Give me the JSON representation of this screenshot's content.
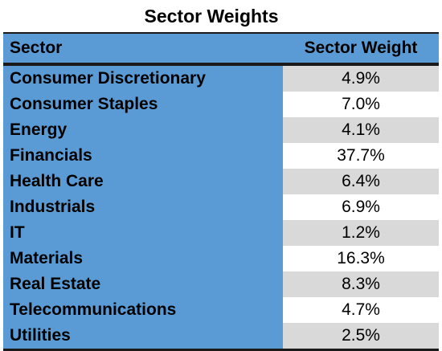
{
  "title": "Sector Weights",
  "columns": [
    "Sector",
    "Sector Weight"
  ],
  "rows": [
    {
      "sector": "Consumer Discretionary",
      "weight": "4.9%"
    },
    {
      "sector": "Consumer Staples",
      "weight": "7.0%"
    },
    {
      "sector": "Energy",
      "weight": "4.1%"
    },
    {
      "sector": "Financials",
      "weight": "37.7%"
    },
    {
      "sector": "Health Care",
      "weight": "6.4%"
    },
    {
      "sector": "Industrials",
      "weight": "6.9%"
    },
    {
      "sector": "IT",
      "weight": "1.2%"
    },
    {
      "sector": "Materials",
      "weight": "16.3%"
    },
    {
      "sector": "Real Estate",
      "weight": "8.3%"
    },
    {
      "sector": "Telecommunications",
      "weight": "4.7%"
    },
    {
      "sector": "Utilities",
      "weight": "2.5%"
    }
  ],
  "colors": {
    "header_bg": "#5b9bd5",
    "stripe": "#d9d9d9",
    "rule": "#1a1a1a"
  }
}
